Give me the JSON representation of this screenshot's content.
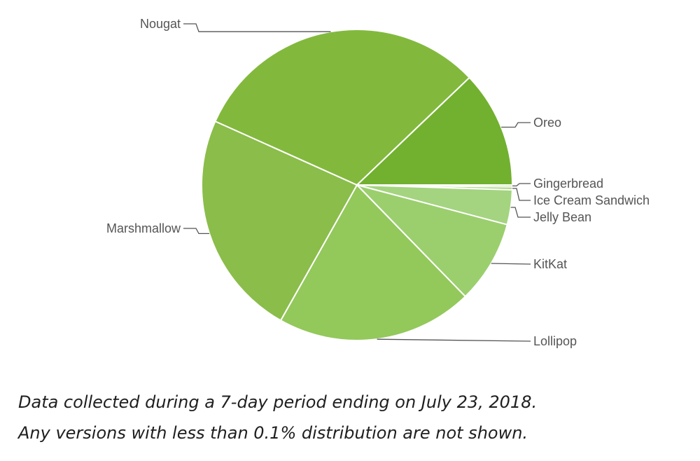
{
  "chart_data": {
    "type": "pie",
    "slices": [
      {
        "label": "Gingerbread",
        "value": 0.2,
        "color": "#9fd071"
      },
      {
        "label": "Ice Cream Sandwich",
        "value": 0.3,
        "color": "#a8d57e"
      },
      {
        "label": "Jelly Bean",
        "value": 3.6,
        "color": "#a4d47f"
      },
      {
        "label": "KitKat",
        "value": 8.6,
        "color": "#9bcf6e"
      },
      {
        "label": "Lollipop",
        "value": 20.4,
        "color": "#93c85b"
      },
      {
        "label": "Marshmallow",
        "value": 23.5,
        "color": "#8bbd4a"
      },
      {
        "label": "Nougat",
        "value": 31.1,
        "color": "#82b93d"
      },
      {
        "label": "Oreo",
        "value": 12.1,
        "color": "#72b02f"
      }
    ],
    "start_direction": "3 o'clock",
    "order": "clockwise"
  },
  "caption": {
    "line1": "Data collected during a 7-day period ending on July 23, 2018.",
    "line2": "Any versions with less than 0.1% distribution are not shown."
  }
}
